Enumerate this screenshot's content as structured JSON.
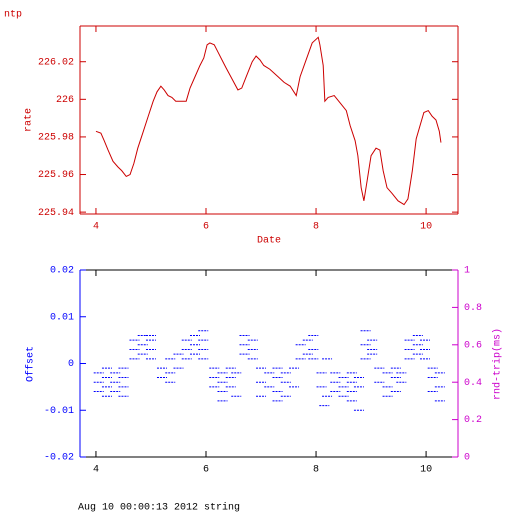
{
  "chart_data": [
    {
      "type": "line",
      "title": "ntp",
      "xlabel": "Date",
      "ylabel": "rate",
      "color": "#cc0000",
      "xlim": [
        3.71,
        10.58
      ],
      "xticks": [
        4,
        6,
        8,
        10
      ],
      "ylim": [
        225.939,
        226.039
      ],
      "yticks": [
        225.94,
        225.96,
        225.98,
        226,
        226.02
      ],
      "x": [
        4.0,
        4.09,
        4.15,
        4.22,
        4.31,
        4.4,
        4.47,
        4.55,
        4.62,
        4.69,
        4.76,
        4.85,
        4.95,
        5.04,
        5.11,
        5.18,
        5.24,
        5.31,
        5.38,
        5.45,
        5.53,
        5.64,
        5.71,
        5.8,
        5.89,
        5.96,
        6.02,
        6.07,
        6.15,
        6.22,
        6.29,
        6.36,
        6.47,
        6.58,
        6.65,
        6.73,
        6.84,
        6.91,
        6.98,
        7.05,
        7.16,
        7.31,
        7.42,
        7.53,
        7.64,
        7.71,
        7.82,
        7.93,
        8.04,
        8.07,
        8.13,
        8.16,
        8.22,
        8.33,
        8.44,
        8.55,
        8.62,
        8.71,
        8.76,
        8.82,
        8.87,
        8.93,
        9.0,
        9.09,
        9.16,
        9.22,
        9.29,
        9.38,
        9.49,
        9.6,
        9.67,
        9.75,
        9.82,
        9.89,
        9.96,
        10.04,
        10.11,
        10.18,
        10.24,
        10.27
      ],
      "values": [
        225.983,
        225.982,
        225.978,
        225.973,
        225.967,
        225.964,
        225.962,
        225.959,
        225.96,
        225.966,
        225.974,
        225.982,
        225.991,
        225.999,
        226.004,
        226.007,
        226.005,
        226.002,
        226.001,
        225.999,
        225.999,
        225.999,
        226.006,
        226.012,
        226.018,
        226.022,
        226.029,
        226.03,
        226.029,
        226.025,
        226.021,
        226.017,
        226.011,
        226.005,
        226.006,
        226.012,
        226.02,
        226.023,
        226.021,
        226.018,
        226.016,
        226.012,
        226.009,
        226.007,
        226.002,
        226.012,
        226.021,
        226.03,
        226.033,
        226.029,
        226.018,
        225.999,
        226.001,
        226.002,
        225.998,
        225.994,
        225.986,
        225.978,
        225.97,
        225.953,
        225.946,
        225.957,
        225.97,
        225.974,
        225.973,
        225.962,
        225.953,
        225.95,
        225.946,
        225.944,
        225.947,
        225.962,
        225.979,
        225.986,
        225.993,
        225.994,
        225.991,
        225.989,
        225.983,
        225.977
      ]
    },
    {
      "type": "scatter",
      "ylabel": "Offset",
      "y2label": "rnd-trip(ms)",
      "color": "#0000ff",
      "y2color": "#cc00cc",
      "xlim": [
        3.71,
        10.58
      ],
      "xticks": [
        4,
        6,
        8,
        10
      ],
      "ylim": [
        -0.02,
        0.02
      ],
      "yticks": [
        -0.02,
        -0.01,
        0,
        0.01,
        0.02
      ],
      "y2lim": [
        0,
        1
      ],
      "y2ticks": [
        0,
        0.2,
        0.4,
        0.6,
        0.8,
        1
      ],
      "x": [
        4.05,
        4.05,
        4.05,
        4.2,
        4.2,
        4.2,
        4.2,
        4.35,
        4.35,
        4.35,
        4.5,
        4.5,
        4.5,
        4.5,
        4.7,
        4.7,
        4.7,
        4.85,
        4.85,
        4.85,
        5.0,
        5.0,
        5.0,
        5.0,
        5.2,
        5.2,
        5.35,
        5.35,
        5.35,
        5.5,
        5.5,
        5.65,
        5.65,
        5.65,
        5.8,
        5.8,
        5.8,
        5.95,
        5.95,
        5.95,
        5.95,
        6.15,
        6.15,
        6.15,
        6.3,
        6.3,
        6.3,
        6.3,
        6.45,
        6.45,
        6.45,
        6.55,
        6.55,
        6.7,
        6.7,
        6.7,
        6.85,
        6.85,
        6.85,
        7.0,
        7.0,
        7.0,
        7.15,
        7.15,
        7.3,
        7.3,
        7.3,
        7.3,
        7.45,
        7.45,
        7.45,
        7.6,
        7.6,
        7.72,
        7.72,
        7.85,
        7.85,
        7.95,
        7.95,
        7.95,
        8.1,
        8.1,
        8.2,
        8.2,
        8.15,
        8.35,
        8.35,
        8.35,
        8.5,
        8.5,
        8.5,
        8.65,
        8.65,
        8.65,
        8.65,
        8.78,
        8.78,
        8.78,
        8.9,
        8.9,
        8.9,
        9.02,
        9.02,
        9.02,
        9.15,
        9.15,
        9.3,
        9.3,
        9.3,
        9.45,
        9.45,
        9.45,
        9.55,
        9.55,
        9.7,
        9.7,
        9.7,
        9.85,
        9.85,
        9.85,
        9.98,
        9.98,
        9.98,
        10.12,
        10.12,
        10.12,
        10.25,
        10.25,
        10.25
      ],
      "values": [
        -0.002,
        -0.004,
        -0.006,
        -0.001,
        -0.003,
        -0.005,
        -0.007,
        -0.002,
        -0.004,
        -0.006,
        -0.001,
        -0.003,
        -0.005,
        -0.007,
        0.001,
        0.003,
        0.005,
        0.002,
        0.004,
        0.006,
        0.001,
        0.003,
        0.005,
        0.006,
        -0.001,
        -0.003,
        0.001,
        -0.002,
        -0.004,
        0.002,
        -0.001,
        0.001,
        0.003,
        0.005,
        0.002,
        0.004,
        0.006,
        0.001,
        0.003,
        0.005,
        0.007,
        -0.001,
        -0.003,
        -0.005,
        -0.002,
        -0.004,
        -0.006,
        -0.008,
        -0.001,
        -0.003,
        -0.005,
        -0.002,
        -0.007,
        0.002,
        0.004,
        0.006,
        0.001,
        0.003,
        0.005,
        -0.001,
        -0.004,
        -0.007,
        -0.002,
        -0.005,
        -0.001,
        -0.003,
        -0.006,
        -0.008,
        -0.002,
        -0.004,
        -0.007,
        -0.001,
        -0.005,
        0.001,
        0.004,
        0.002,
        0.005,
        0.001,
        0.003,
        0.006,
        -0.002,
        -0.005,
        0.001,
        -0.007,
        -0.009,
        -0.002,
        -0.004,
        -0.006,
        -0.003,
        -0.005,
        -0.007,
        -0.002,
        -0.004,
        -0.006,
        -0.008,
        -0.003,
        -0.005,
        -0.01,
        0.001,
        0.004,
        0.007,
        0.002,
        0.005,
        0.003,
        -0.001,
        -0.004,
        -0.002,
        -0.005,
        -0.007,
        -0.001,
        -0.003,
        -0.006,
        -0.002,
        -0.004,
        0.001,
        0.003,
        0.005,
        0.002,
        0.004,
        0.006,
        0.001,
        0.003,
        0.005,
        -0.001,
        -0.003,
        -0.006,
        -0.002,
        -0.005,
        -0.008
      ]
    }
  ],
  "footer": "Aug 10 00:00:13 2012 string"
}
